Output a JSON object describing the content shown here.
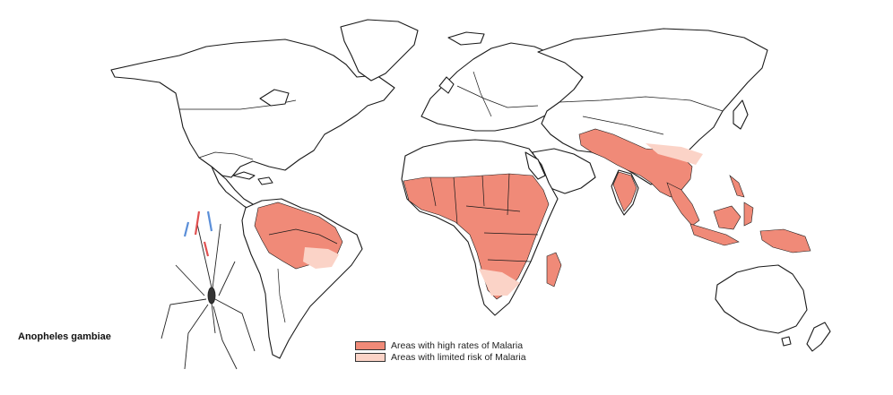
{
  "caption": "Anopheles gambiae",
  "legend": [
    {
      "label": "Areas with high rates of Malaria",
      "color": "#f08a78"
    },
    {
      "label": "Areas with limited risk of Malaria",
      "color": "#fbd3c7"
    }
  ],
  "icons": {
    "mosquito": "mosquito-illustration",
    "map": "world-map"
  }
}
